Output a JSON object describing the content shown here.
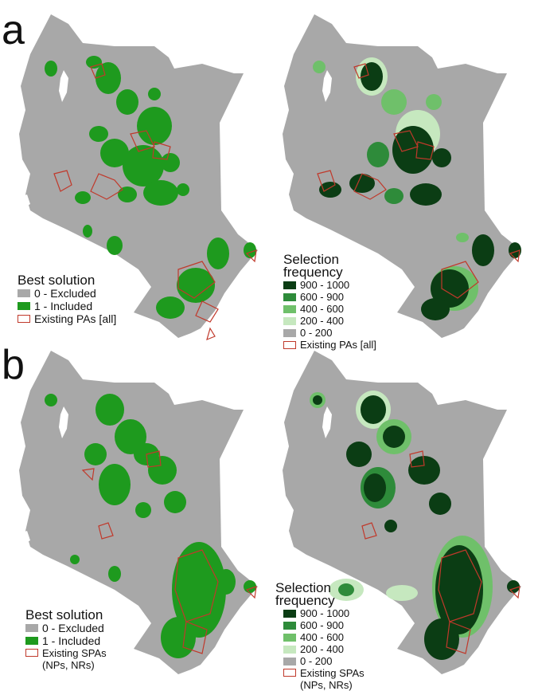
{
  "panels": [
    {
      "letter": "a",
      "left_map": {
        "legend": {
          "title": "Best solution",
          "items": [
            {
              "label": "0 - Excluded",
              "color": "#a8a8a8"
            },
            {
              "label": "1 - Included",
              "color": "#1e9a1e"
            }
          ],
          "pa_label": "Existing PAs [all]",
          "pa_color": "#c0392b"
        }
      },
      "right_map": {
        "legend": {
          "title_line1": "Selection",
          "title_line2": "frequency",
          "items": [
            {
              "label": "900 - 1000",
              "color": "#0b3d14"
            },
            {
              "label": "600 - 900",
              "color": "#2e8b3a"
            },
            {
              "label": "400 - 600",
              "color": "#6fc06a"
            },
            {
              "label": "200 - 400",
              "color": "#c6e8bf"
            },
            {
              "label": "0 - 200",
              "color": "#a8a8a8"
            }
          ],
          "pa_label": "Existing PAs [all]",
          "pa_color": "#c0392b"
        }
      }
    },
    {
      "letter": "b",
      "left_map": {
        "legend": {
          "title": "Best solution",
          "items": [
            {
              "label": "0 - Excluded",
              "color": "#a8a8a8"
            },
            {
              "label": "1 - Included",
              "color": "#1e9a1e"
            }
          ],
          "pa_label_line1": "Existing SPAs",
          "pa_label_line2": "(NPs, NRs)",
          "pa_color": "#c0392b"
        }
      },
      "right_map": {
        "legend": {
          "title_line1": "Selection",
          "title_line2": "frequency",
          "items": [
            {
              "label": "900 - 1000",
              "color": "#0b3d14"
            },
            {
              "label": "600 - 900",
              "color": "#2e8b3a"
            },
            {
              "label": "400 - 600",
              "color": "#6fc06a"
            },
            {
              "label": "200 - 400",
              "color": "#c6e8bf"
            },
            {
              "label": "0 - 200",
              "color": "#a8a8a8"
            }
          ],
          "pa_label_line1": "Existing SPAs",
          "pa_label_line2": "(NPs, NRs)",
          "pa_color": "#c0392b"
        }
      }
    }
  ],
  "colors": {
    "land": "#a8a8a8",
    "included": "#1e9a1e",
    "freq_high": "#0b3d14",
    "freq_mid": "#2e8b3a",
    "freq_low": "#6fc06a",
    "freq_min": "#c6e8bf",
    "pa_outline": "#c0392b",
    "water": "#ffffff"
  }
}
